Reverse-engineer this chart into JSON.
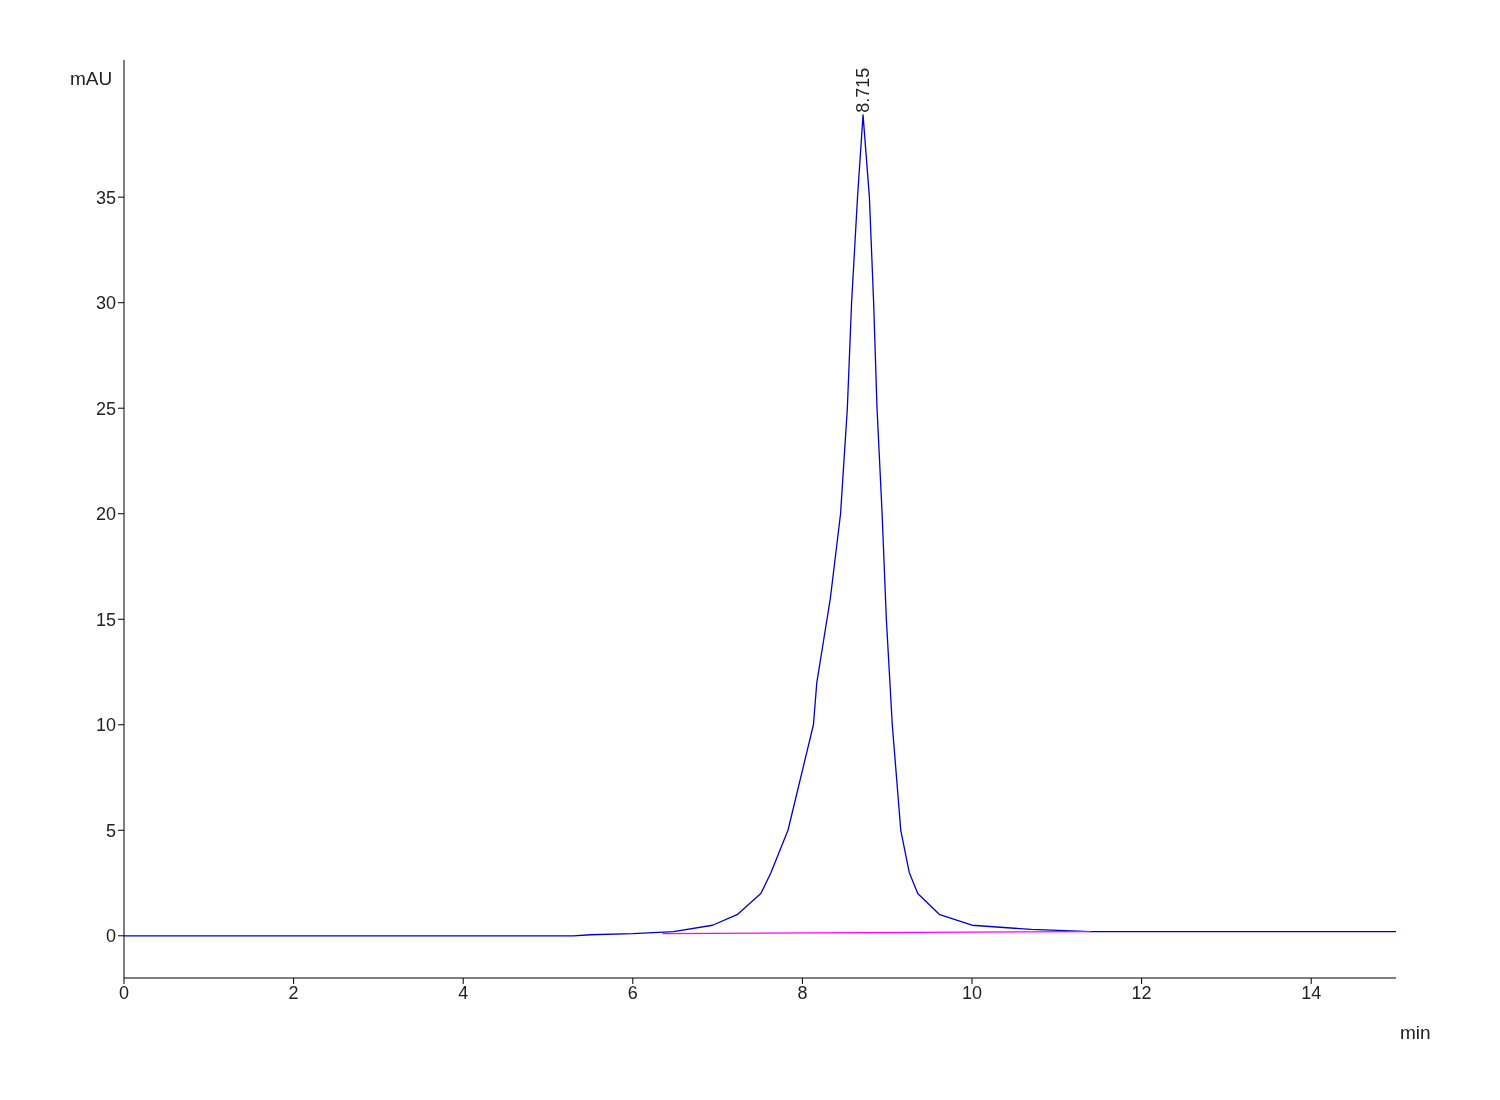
{
  "chart_data": {
    "type": "line",
    "xlabel": "min",
    "ylabel": "mAU",
    "xlim": [
      0,
      15
    ],
    "ylim": [
      -2,
      41.5
    ],
    "xticks": [
      0,
      2,
      4,
      6,
      8,
      10,
      12,
      14
    ],
    "yticks": [
      0,
      5,
      10,
      15,
      20,
      25,
      30,
      35
    ],
    "marker": "none",
    "line_style": "solid",
    "annotations": [
      {
        "text": "8.715",
        "x": 8.715,
        "y": 38.9
      }
    ],
    "series": [
      {
        "color": "#0000cc",
        "x": [
          0,
          2,
          4,
          5.3,
          5.5,
          6,
          6.48,
          6.94,
          7.23,
          7.51,
          7.63,
          7.83,
          8.13,
          8.17,
          8.29,
          8.33,
          8.45,
          8.53,
          8.58,
          8.65,
          8.715,
          8.79,
          8.84,
          8.88,
          8.94,
          8.99,
          9.06,
          9.16,
          9.26,
          9.36,
          9.62,
          10,
          10.7,
          11.4,
          13,
          15
        ],
        "values": [
          0,
          0,
          0,
          0,
          0.05,
          0.1,
          0.2,
          0.5,
          1,
          2,
          3,
          5,
          10,
          12,
          15,
          16,
          20,
          25,
          30,
          35,
          38.9,
          35,
          30,
          25,
          20,
          15,
          10,
          5,
          3,
          2,
          1,
          0.5,
          0.3,
          0.2,
          0.2,
          0.2
        ]
      },
      {
        "type": "line",
        "color": "#ff00ff",
        "x": [
          6.35,
          11.4
        ],
        "values": [
          0.1,
          0.2
        ]
      }
    ]
  }
}
